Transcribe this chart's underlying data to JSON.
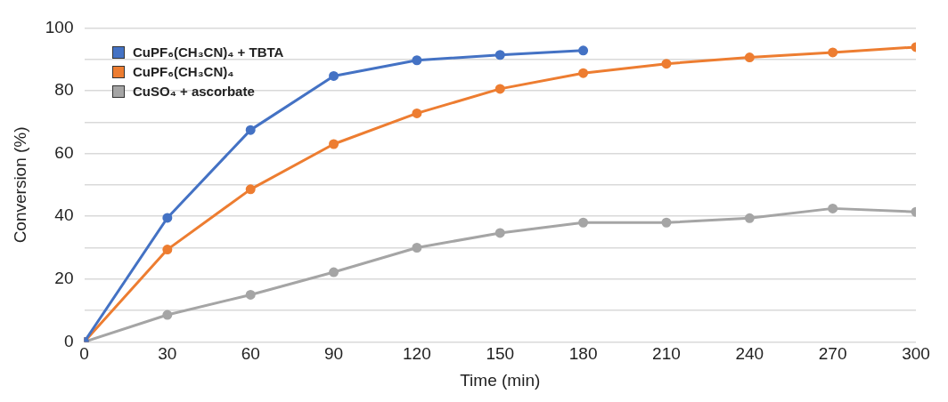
{
  "chart_data": {
    "type": "line",
    "xlabel": "Time (min)",
    "ylabel": "Conversion (%)",
    "xlim": [
      0,
      300
    ],
    "xticks": [
      0,
      30,
      60,
      90,
      120,
      150,
      180,
      210,
      240,
      270,
      300
    ],
    "ylim": [
      0,
      100
    ],
    "yticks": [
      0,
      {
        "value": 10,
        "label": null
      },
      20,
      {
        "value": 30,
        "label": null
      },
      40,
      {
        "value": 50,
        "label": null
      },
      60,
      {
        "value": 70,
        "label": null
      },
      80,
      {
        "value": 90,
        "label": null
      },
      100
    ],
    "grid": "y",
    "legend": "top left",
    "marker": "circle",
    "line_style": "solid",
    "series": [
      {
        "name": "CuPF₆(CH₃CN)₄ + TBTA",
        "color": "#4472c4",
        "x": [
          0,
          30,
          60,
          90,
          120,
          150,
          180
        ],
        "values": [
          0,
          39.5,
          67.5,
          84.7,
          89.7,
          91.4,
          92.8
        ]
      },
      {
        "name": "CuPF₆(CH₃CN)₄",
        "color": "#ed7d31",
        "x": [
          0,
          30,
          60,
          90,
          120,
          150,
          180,
          210,
          240,
          270,
          300
        ],
        "values": [
          0,
          29.4,
          48.6,
          63,
          72.8,
          80.6,
          85.6,
          88.6,
          90.6,
          92.2,
          93.9
        ]
      },
      {
        "name": "CuSO₄ + ascorbate",
        "color": "#a5a5a5",
        "x": [
          0,
          30,
          60,
          90,
          120,
          150,
          180,
          210,
          240,
          270,
          300
        ],
        "values": [
          0,
          8.6,
          15,
          22.2,
          30,
          34.7,
          38,
          38,
          39.4,
          42.5,
          41.4
        ]
      }
    ]
  }
}
